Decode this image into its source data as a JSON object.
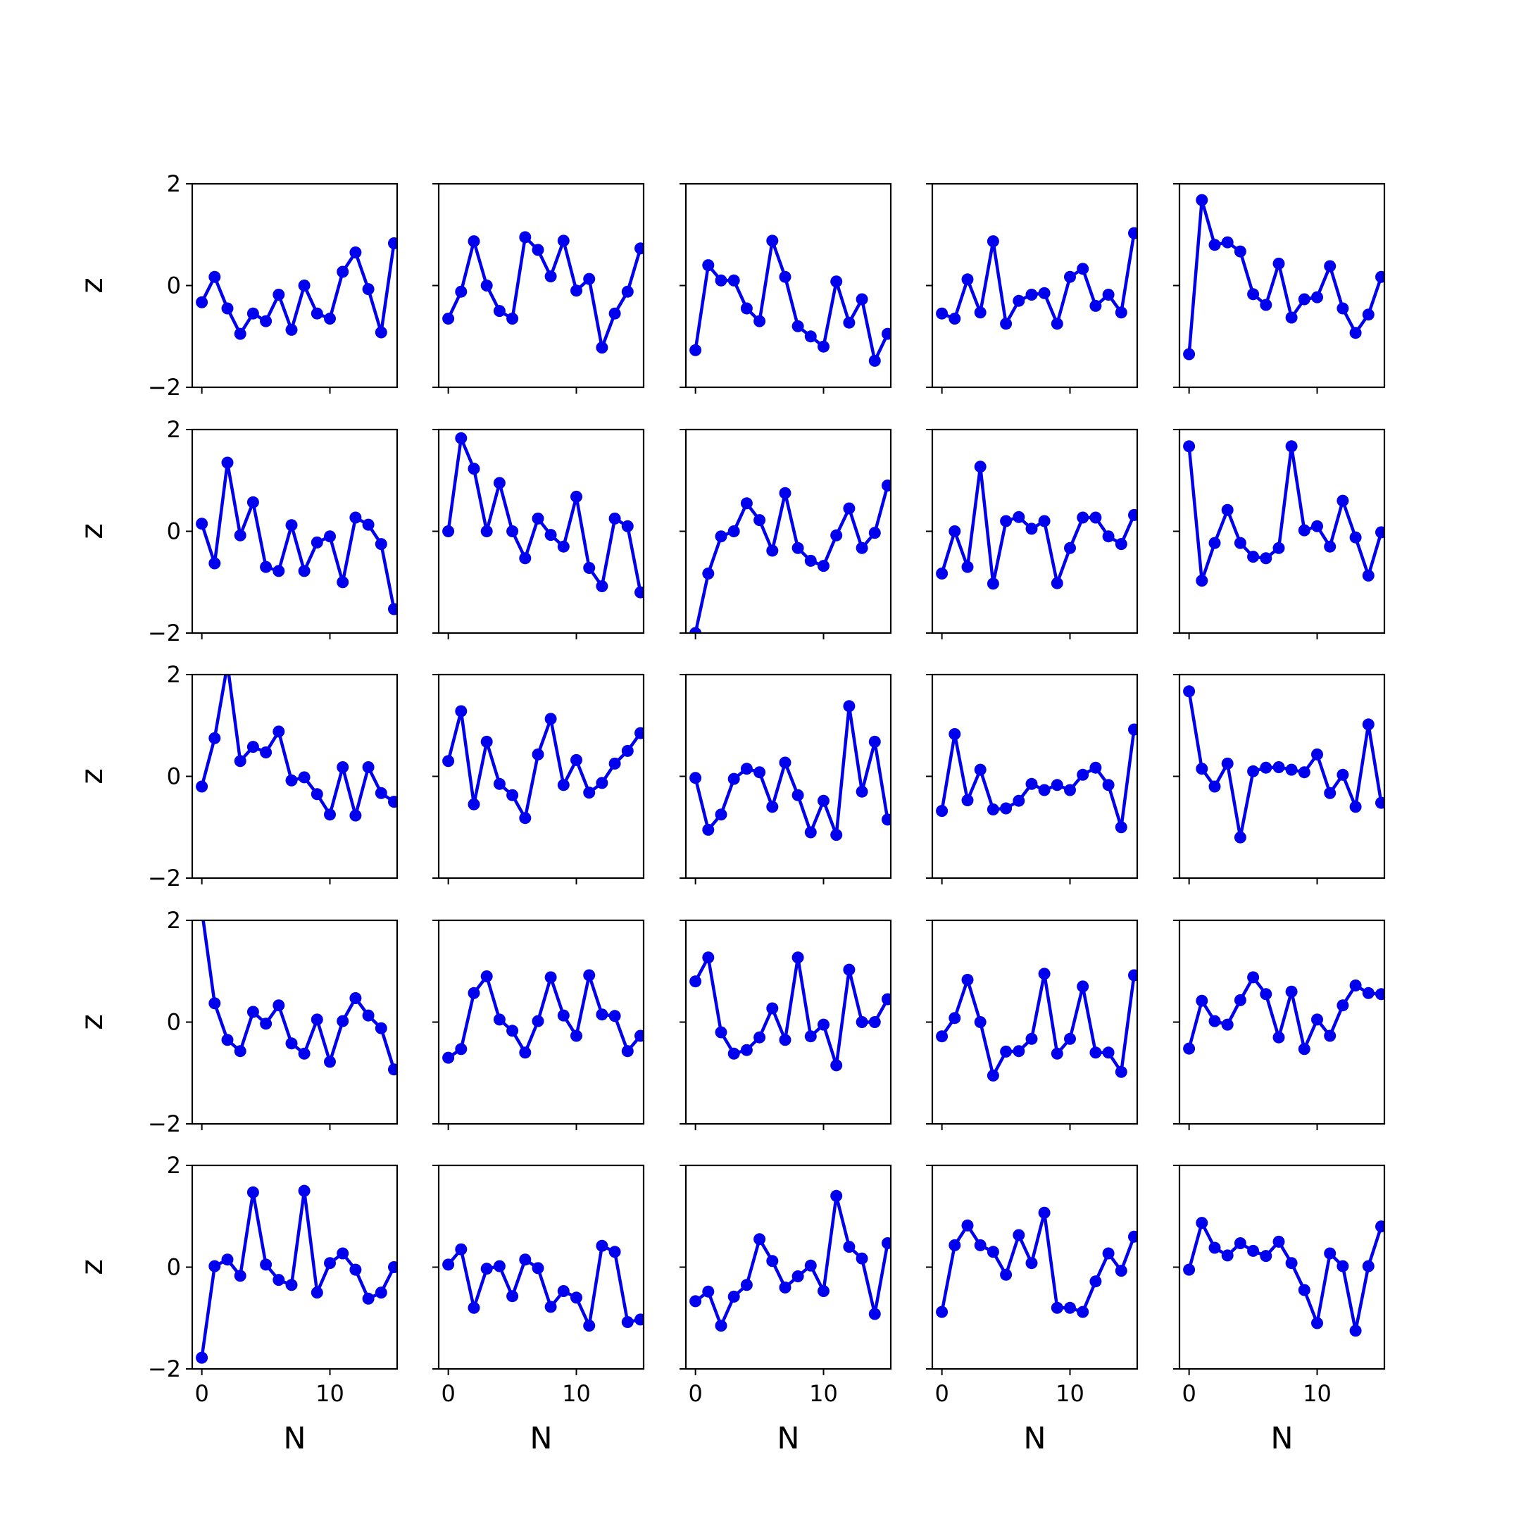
{
  "chart_data": {
    "type": "line",
    "layout": "5x5 grid of line plots with point markers",
    "xlabel": "N",
    "ylabel": "z",
    "xlim": [
      -0.75,
      15.25
    ],
    "ylim": [
      -2,
      2
    ],
    "xticks": [
      0,
      10
    ],
    "xtick_labels": [
      "0",
      "10"
    ],
    "yticks": [
      -2,
      0,
      2
    ],
    "ytick_labels": [
      "−2",
      "0",
      "2"
    ],
    "grid": false,
    "series_color": "#0000ee",
    "x": [
      0,
      1,
      2,
      3,
      4,
      5,
      6,
      7,
      8,
      9,
      10,
      11,
      12,
      13,
      14,
      15
    ],
    "panels": [
      [
        {
          "values": [
            -0.33,
            0.17,
            -0.45,
            -0.95,
            -0.55,
            -0.7,
            -0.18,
            -0.87,
            0.0,
            -0.55,
            -0.65,
            0.27,
            0.65,
            -0.07,
            -0.92,
            0.83
          ]
        },
        {
          "values": [
            -0.65,
            -0.12,
            0.87,
            0.0,
            -0.5,
            -0.65,
            0.95,
            0.7,
            0.18,
            0.88,
            -0.1,
            0.13,
            -1.22,
            -0.55,
            -0.12,
            0.73
          ]
        },
        {
          "values": [
            -1.27,
            0.4,
            0.1,
            0.1,
            -0.45,
            -0.7,
            0.88,
            0.17,
            -0.8,
            -1.0,
            -1.2,
            0.08,
            -0.73,
            -0.27,
            -1.48,
            -0.95
          ]
        },
        {
          "values": [
            -0.55,
            -0.65,
            0.12,
            -0.53,
            0.87,
            -0.75,
            -0.3,
            -0.18,
            -0.15,
            -0.75,
            0.17,
            0.33,
            -0.4,
            -0.18,
            -0.53,
            1.03
          ]
        },
        {
          "values": [
            -1.35,
            1.68,
            0.8,
            0.85,
            0.67,
            -0.17,
            -0.38,
            0.43,
            -0.63,
            -0.27,
            -0.23,
            0.38,
            -0.45,
            -0.93,
            -0.57,
            0.17
          ]
        }
      ],
      [
        {
          "values": [
            0.15,
            -0.63,
            1.35,
            -0.08,
            0.57,
            -0.7,
            -0.78,
            0.12,
            -0.78,
            -0.22,
            -0.1,
            -1.0,
            0.27,
            0.13,
            -0.25,
            -1.53
          ]
        },
        {
          "values": [
            0.0,
            1.83,
            1.23,
            0.0,
            0.95,
            0.0,
            -0.53,
            0.25,
            -0.07,
            -0.3,
            0.68,
            -0.72,
            -1.08,
            0.25,
            0.1,
            -1.2
          ]
        },
        {
          "values": [
            -2.0,
            -0.83,
            -0.1,
            0.0,
            0.55,
            0.22,
            -0.38,
            0.75,
            -0.33,
            -0.58,
            -0.68,
            -0.08,
            0.45,
            -0.33,
            -0.03,
            0.9
          ]
        },
        {
          "values": [
            -0.83,
            0.0,
            -0.7,
            1.27,
            -1.03,
            0.2,
            0.28,
            0.05,
            0.2,
            -1.02,
            -0.33,
            0.27,
            0.27,
            -0.1,
            -0.25,
            0.32
          ]
        },
        {
          "values": [
            1.67,
            -0.97,
            -0.23,
            0.42,
            -0.23,
            -0.5,
            -0.53,
            -0.33,
            1.67,
            0.02,
            0.1,
            -0.3,
            0.6,
            -0.12,
            -0.87,
            -0.02
          ]
        }
      ],
      [
        {
          "values": [
            -0.2,
            0.75,
            2.2,
            0.3,
            0.58,
            0.47,
            0.88,
            -0.08,
            -0.02,
            -0.35,
            -0.75,
            0.18,
            -0.77,
            0.18,
            -0.33,
            -0.5
          ]
        },
        {
          "values": [
            0.3,
            1.28,
            -0.55,
            0.68,
            -0.15,
            -0.37,
            -0.82,
            0.43,
            1.13,
            -0.17,
            0.32,
            -0.32,
            -0.13,
            0.25,
            0.5,
            0.85
          ]
        },
        {
          "values": [
            -0.03,
            -1.05,
            -0.75,
            -0.05,
            0.15,
            0.08,
            -0.6,
            0.27,
            -0.37,
            -1.1,
            -0.48,
            -1.15,
            1.38,
            -0.3,
            0.68,
            -0.85
          ]
        },
        {
          "values": [
            -0.68,
            0.83,
            -0.47,
            0.13,
            -0.65,
            -0.63,
            -0.48,
            -0.15,
            -0.27,
            -0.17,
            -0.27,
            0.03,
            0.17,
            -0.17,
            -1.0,
            0.92
          ]
        },
        {
          "values": [
            1.67,
            0.15,
            -0.2,
            0.25,
            -1.2,
            0.1,
            0.17,
            0.18,
            0.13,
            0.08,
            0.43,
            -0.33,
            0.03,
            -0.6,
            1.02,
            -0.52
          ]
        }
      ],
      [
        {
          "values": [
            2.2,
            0.37,
            -0.35,
            -0.57,
            0.2,
            -0.03,
            0.33,
            -0.42,
            -0.62,
            0.05,
            -0.78,
            0.02,
            0.47,
            0.13,
            -0.12,
            -0.93
          ]
        },
        {
          "values": [
            -0.7,
            -0.53,
            0.57,
            0.9,
            0.05,
            -0.17,
            -0.6,
            0.02,
            0.88,
            0.13,
            -0.27,
            0.92,
            0.15,
            0.12,
            -0.57,
            -0.27
          ]
        },
        {
          "values": [
            0.8,
            1.27,
            -0.2,
            -0.62,
            -0.55,
            -0.3,
            0.27,
            -0.35,
            1.27,
            -0.28,
            -0.05,
            -0.85,
            1.03,
            0.0,
            0.0,
            0.45
          ]
        },
        {
          "values": [
            -0.28,
            0.08,
            0.83,
            0.0,
            -1.05,
            -0.58,
            -0.57,
            -0.33,
            0.95,
            -0.62,
            -0.33,
            0.7,
            -0.6,
            -0.6,
            -0.98,
            0.92
          ]
        },
        {
          "values": [
            -0.52,
            0.42,
            0.02,
            -0.05,
            0.43,
            0.88,
            0.55,
            -0.3,
            0.6,
            -0.53,
            0.05,
            -0.27,
            0.33,
            0.72,
            0.57,
            0.55
          ]
        }
      ],
      [
        {
          "values": [
            -1.78,
            0.02,
            0.15,
            -0.17,
            1.47,
            0.05,
            -0.25,
            -0.35,
            1.5,
            -0.5,
            0.08,
            0.27,
            -0.05,
            -0.62,
            -0.5,
            0.0
          ]
        },
        {
          "values": [
            0.05,
            0.35,
            -0.8,
            -0.03,
            0.02,
            -0.57,
            0.15,
            -0.02,
            -0.78,
            -0.47,
            -0.6,
            -1.15,
            0.42,
            0.3,
            -1.08,
            -1.03
          ]
        },
        {
          "values": [
            -0.67,
            -0.48,
            -1.15,
            -0.58,
            -0.35,
            0.55,
            0.12,
            -0.4,
            -0.18,
            0.03,
            -0.47,
            1.4,
            0.4,
            0.17,
            -0.92,
            0.47
          ]
        },
        {
          "values": [
            -0.88,
            0.43,
            0.82,
            0.43,
            0.3,
            -0.15,
            0.63,
            0.08,
            1.07,
            -0.8,
            -0.8,
            -0.88,
            -0.28,
            0.27,
            -0.07,
            0.6
          ]
        },
        {
          "values": [
            -0.05,
            0.87,
            0.38,
            0.23,
            0.47,
            0.32,
            0.22,
            0.5,
            0.08,
            -0.45,
            -1.1,
            0.27,
            0.02,
            -1.25,
            0.02,
            0.8
          ]
        }
      ]
    ]
  }
}
